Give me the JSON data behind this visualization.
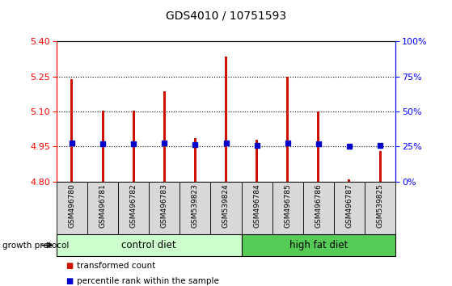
{
  "title": "GDS4010 / 10751593",
  "samples": [
    "GSM496780",
    "GSM496781",
    "GSM496782",
    "GSM496783",
    "GSM539823",
    "GSM539824",
    "GSM496784",
    "GSM496785",
    "GSM496786",
    "GSM496787",
    "GSM539825"
  ],
  "red_values": [
    5.24,
    5.105,
    5.105,
    5.185,
    4.985,
    5.335,
    4.978,
    5.25,
    5.1,
    4.81,
    4.932
  ],
  "blue_values": [
    4.966,
    4.962,
    4.962,
    4.964,
    4.959,
    4.966,
    4.954,
    4.964,
    4.962,
    4.952,
    4.955
  ],
  "ylim_left": [
    4.8,
    5.4
  ],
  "ylim_right": [
    0,
    100
  ],
  "yticks_left": [
    4.8,
    4.95,
    5.1,
    5.25,
    5.4
  ],
  "yticks_right": [
    0,
    25,
    50,
    75,
    100
  ],
  "grid_values": [
    4.95,
    5.1,
    5.25
  ],
  "bar_color": "#cc1100",
  "blue_color": "#0000cc",
  "group1_label": "control diet",
  "group2_label": "high fat diet",
  "group1_color": "#ccffcc",
  "group2_color": "#55cc55",
  "group1_count": 6,
  "group2_count": 5,
  "bar_width": 0.08,
  "protocol_label": "growth protocol",
  "legend1": "transformed count",
  "legend2": "percentile rank within the sample",
  "bg_color": "#ffffff",
  "plot_bg": "#ffffff",
  "bar_bottom": 4.8,
  "blue_square_size": 5
}
